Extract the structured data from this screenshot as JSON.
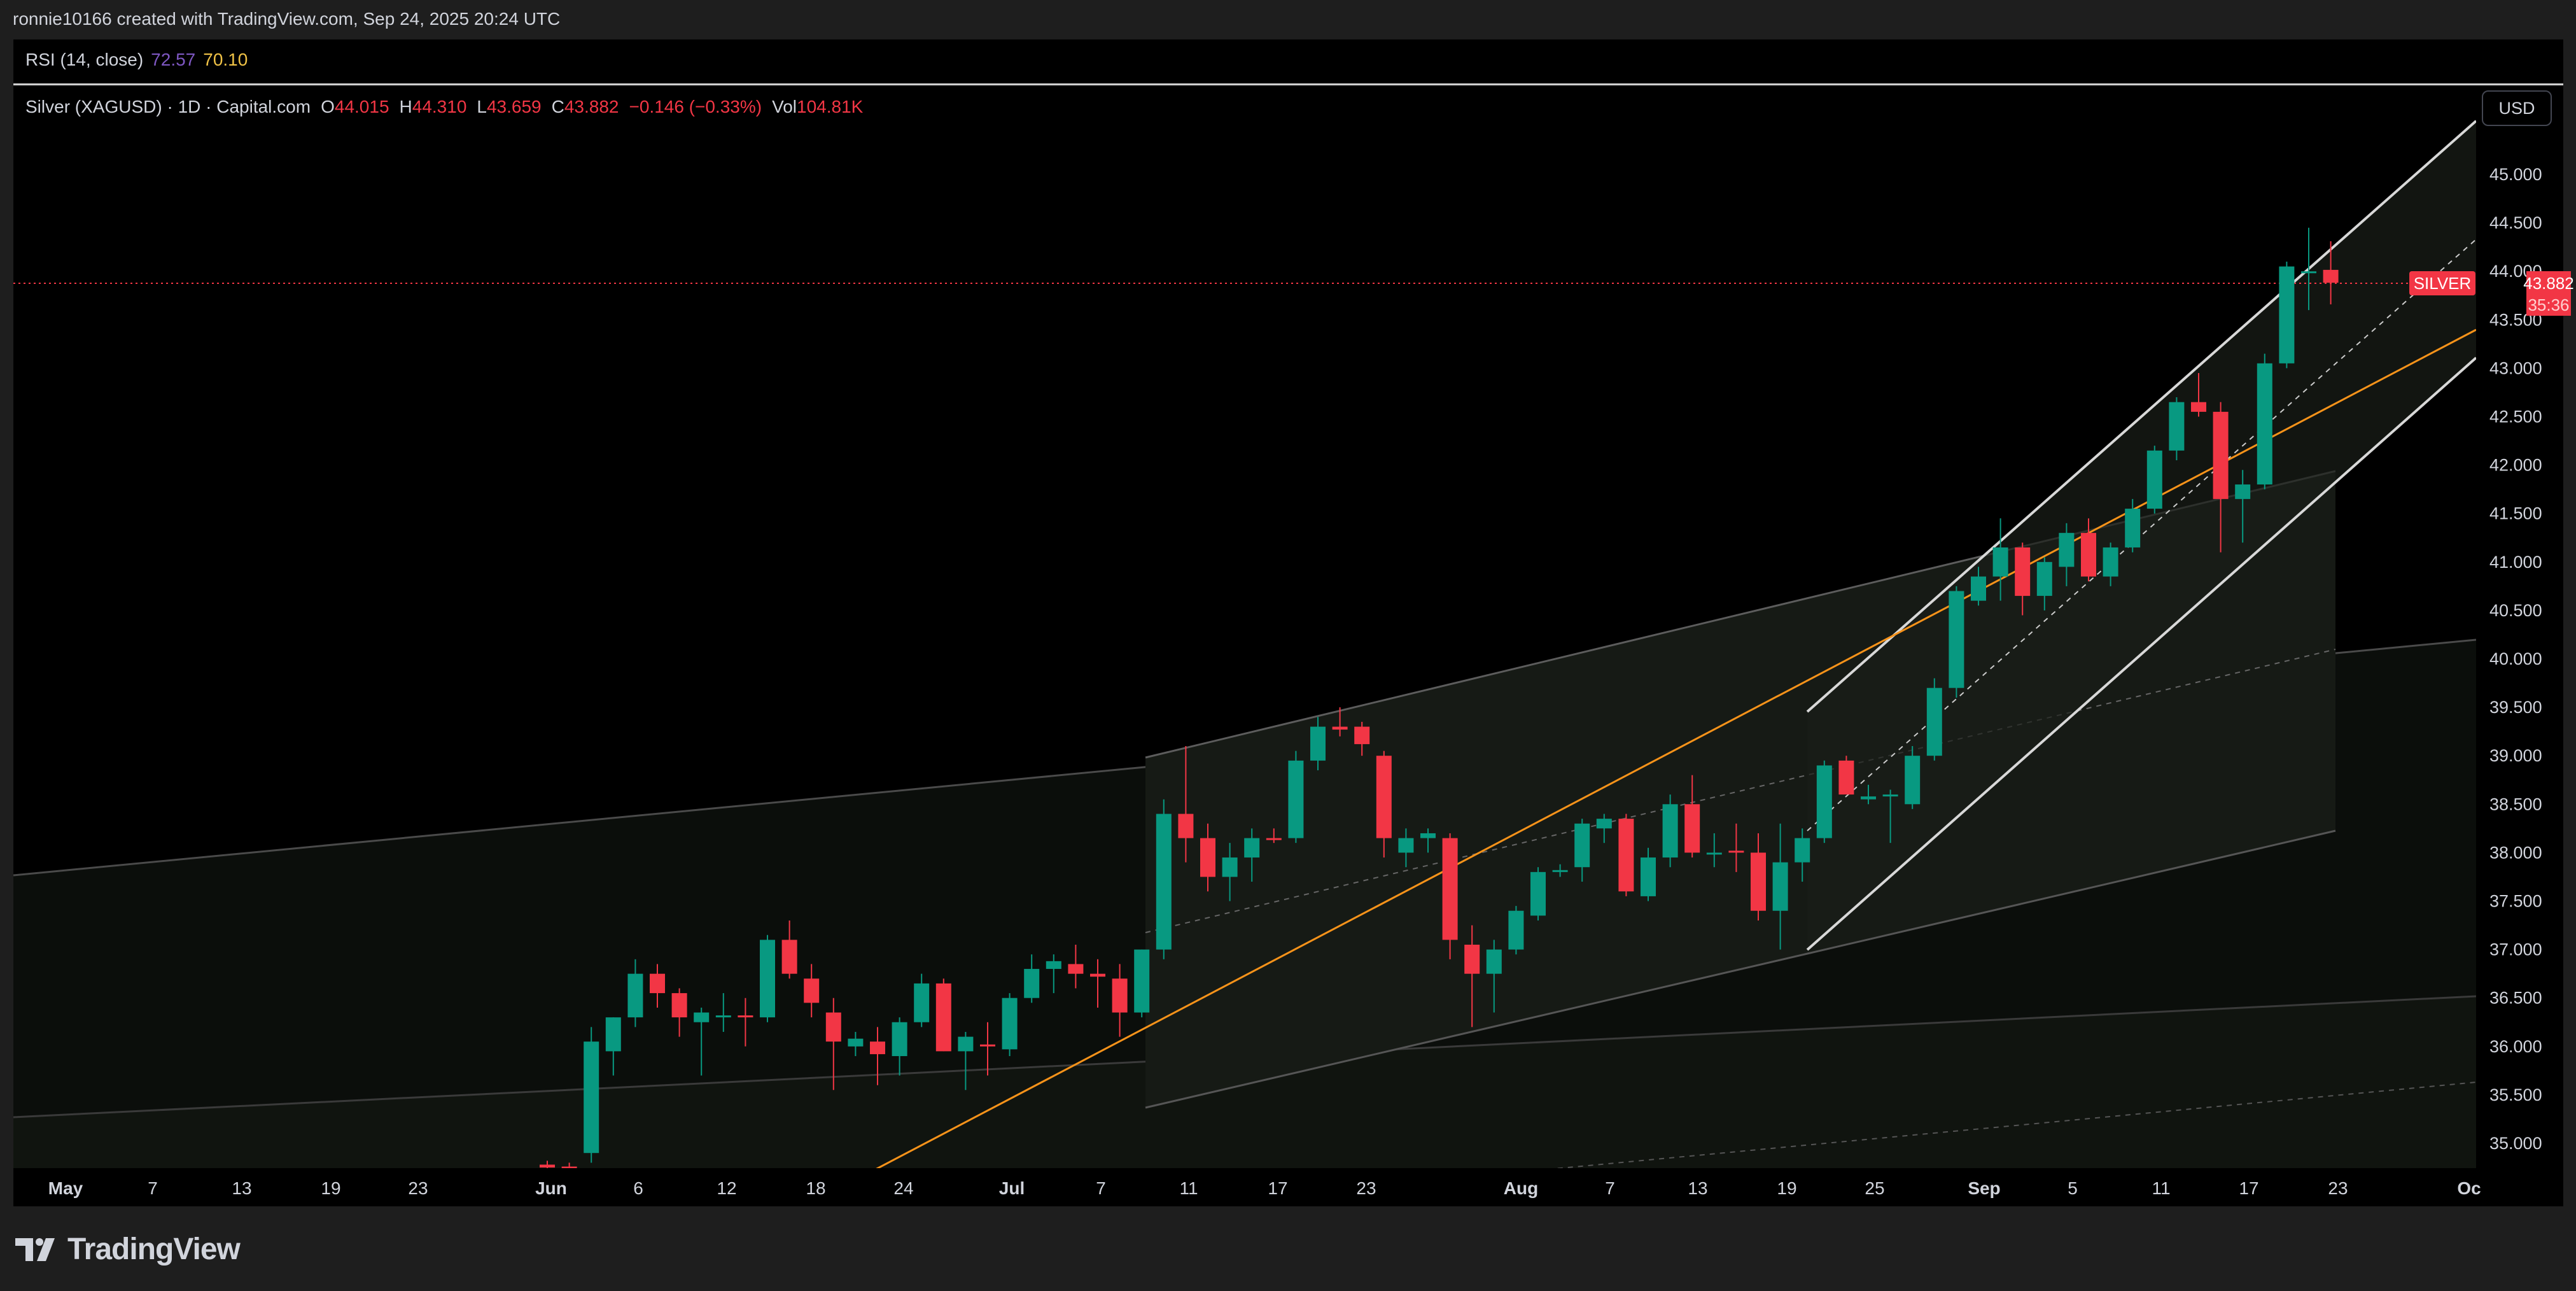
{
  "header": {
    "credit": "ronnie10166 created with TradingView.com, Sep 24, 2025 20:24 UTC"
  },
  "rsi": {
    "label": "RSI (14, close)",
    "value1": "72.57",
    "value2": "70.10"
  },
  "legend": {
    "symbol": "Silver (XAGUSD) · 1D · Capital.com",
    "o_label": "O",
    "o": "44.015",
    "h_label": "H",
    "h": "44.310",
    "l_label": "L",
    "l": "43.659",
    "c_label": "C",
    "c": "43.882",
    "change": "−0.146 (−0.33%)",
    "vol_label": "Vol",
    "vol": "104.81K"
  },
  "currency_button": "USD",
  "price_tag": {
    "symbol": "SILVER",
    "price": "43.882",
    "countdown": "35:36"
  },
  "brand": {
    "name": "TradingView"
  },
  "colors": {
    "up": "#089981",
    "down": "#f23645",
    "background": "#000000",
    "orange_line": "#f7931a"
  },
  "chart_data": {
    "type": "candlestick",
    "symbol": "Silver (XAGUSD)",
    "interval": "1D",
    "ylim": [
      34.7,
      45.5
    ],
    "y_ticks": [
      "35.000",
      "35.500",
      "36.000",
      "36.500",
      "37.000",
      "37.500",
      "38.000",
      "38.500",
      "39.000",
      "39.500",
      "40.000",
      "40.500",
      "41.000",
      "41.500",
      "42.000",
      "42.500",
      "43.000",
      "43.500",
      "44.000",
      "44.500",
      "45.000"
    ],
    "x_ticks": [
      "May",
      "7",
      "13",
      "19",
      "23",
      "Jun",
      "6",
      "12",
      "18",
      "24",
      "Jul",
      "7",
      "11",
      "17",
      "23",
      "Aug",
      "7",
      "13",
      "19",
      "25",
      "Sep",
      "5",
      "11",
      "17",
      "23",
      "Oc"
    ],
    "last_price": 43.882,
    "candles": [
      {
        "o": 34.78,
        "h": 34.82,
        "l": 34.7,
        "c": 34.75
      },
      {
        "o": 34.76,
        "h": 34.8,
        "l": 34.7,
        "c": 34.74
      },
      {
        "o": 34.9,
        "h": 36.2,
        "l": 34.8,
        "c": 36.05
      },
      {
        "o": 35.95,
        "h": 36.3,
        "l": 35.7,
        "c": 36.3
      },
      {
        "o": 36.3,
        "h": 36.9,
        "l": 36.2,
        "c": 36.75
      },
      {
        "o": 36.75,
        "h": 36.85,
        "l": 36.4,
        "c": 36.55
      },
      {
        "o": 36.55,
        "h": 36.6,
        "l": 36.1,
        "c": 36.3
      },
      {
        "o": 36.25,
        "h": 36.4,
        "l": 35.7,
        "c": 36.35
      },
      {
        "o": 36.3,
        "h": 36.55,
        "l": 36.15,
        "c": 36.32
      },
      {
        "o": 36.32,
        "h": 36.5,
        "l": 36.0,
        "c": 36.3
      },
      {
        "o": 36.3,
        "h": 37.15,
        "l": 36.25,
        "c": 37.1
      },
      {
        "o": 37.1,
        "h": 37.3,
        "l": 36.7,
        "c": 36.75
      },
      {
        "o": 36.7,
        "h": 36.85,
        "l": 36.3,
        "c": 36.45
      },
      {
        "o": 36.35,
        "h": 36.5,
        "l": 35.55,
        "c": 36.05
      },
      {
        "o": 36.0,
        "h": 36.15,
        "l": 35.9,
        "c": 36.08
      },
      {
        "o": 36.05,
        "h": 36.2,
        "l": 35.6,
        "c": 35.92
      },
      {
        "o": 35.9,
        "h": 36.3,
        "l": 35.7,
        "c": 36.25
      },
      {
        "o": 36.25,
        "h": 36.75,
        "l": 36.2,
        "c": 36.65
      },
      {
        "o": 36.65,
        "h": 36.7,
        "l": 35.95,
        "c": 35.95
      },
      {
        "o": 35.95,
        "h": 36.15,
        "l": 35.55,
        "c": 36.1
      },
      {
        "o": 36.02,
        "h": 36.25,
        "l": 35.7,
        "c": 36.0
      },
      {
        "o": 35.97,
        "h": 36.55,
        "l": 35.9,
        "c": 36.5
      },
      {
        "o": 36.5,
        "h": 36.95,
        "l": 36.45,
        "c": 36.8
      },
      {
        "o": 36.8,
        "h": 36.95,
        "l": 36.55,
        "c": 36.88
      },
      {
        "o": 36.85,
        "h": 37.05,
        "l": 36.6,
        "c": 36.75
      },
      {
        "o": 36.75,
        "h": 36.9,
        "l": 36.4,
        "c": 36.72
      },
      {
        "o": 36.7,
        "h": 36.85,
        "l": 36.1,
        "c": 36.35
      },
      {
        "o": 36.35,
        "h": 37.0,
        "l": 36.3,
        "c": 37.0
      },
      {
        "o": 37.0,
        "h": 38.55,
        "l": 36.9,
        "c": 38.4
      },
      {
        "o": 38.4,
        "h": 39.1,
        "l": 37.9,
        "c": 38.15
      },
      {
        "o": 38.15,
        "h": 38.3,
        "l": 37.6,
        "c": 37.75
      },
      {
        "o": 37.75,
        "h": 38.1,
        "l": 37.5,
        "c": 37.95
      },
      {
        "o": 37.95,
        "h": 38.25,
        "l": 37.7,
        "c": 38.15
      },
      {
        "o": 38.15,
        "h": 38.25,
        "l": 38.1,
        "c": 38.13
      },
      {
        "o": 38.15,
        "h": 39.05,
        "l": 38.1,
        "c": 38.95
      },
      {
        "o": 38.95,
        "h": 39.4,
        "l": 38.85,
        "c": 39.3
      },
      {
        "o": 39.3,
        "h": 39.5,
        "l": 39.2,
        "c": 39.27
      },
      {
        "o": 39.3,
        "h": 39.35,
        "l": 39.0,
        "c": 39.12
      },
      {
        "o": 39.0,
        "h": 39.05,
        "l": 37.95,
        "c": 38.15
      },
      {
        "o": 38.0,
        "h": 38.25,
        "l": 37.85,
        "c": 38.15
      },
      {
        "o": 38.15,
        "h": 38.25,
        "l": 38.0,
        "c": 38.2
      },
      {
        "o": 38.15,
        "h": 38.2,
        "l": 36.9,
        "c": 37.1
      },
      {
        "o": 37.05,
        "h": 37.25,
        "l": 36.2,
        "c": 36.75
      },
      {
        "o": 36.75,
        "h": 37.1,
        "l": 36.35,
        "c": 37.0
      },
      {
        "o": 37.0,
        "h": 37.45,
        "l": 36.95,
        "c": 37.4
      },
      {
        "o": 37.35,
        "h": 37.85,
        "l": 37.3,
        "c": 37.8
      },
      {
        "o": 37.8,
        "h": 37.88,
        "l": 37.75,
        "c": 37.82
      },
      {
        "o": 37.85,
        "h": 38.35,
        "l": 37.7,
        "c": 38.3
      },
      {
        "o": 38.25,
        "h": 38.4,
        "l": 38.1,
        "c": 38.35
      },
      {
        "o": 38.35,
        "h": 38.4,
        "l": 37.55,
        "c": 37.6
      },
      {
        "o": 37.55,
        "h": 38.05,
        "l": 37.5,
        "c": 37.95
      },
      {
        "o": 37.95,
        "h": 38.6,
        "l": 37.85,
        "c": 38.5
      },
      {
        "o": 38.5,
        "h": 38.8,
        "l": 37.95,
        "c": 38.0
      },
      {
        "o": 38.0,
        "h": 38.2,
        "l": 37.85,
        "c": 38.0
      },
      {
        "o": 38.02,
        "h": 38.3,
        "l": 37.8,
        "c": 38.0
      },
      {
        "o": 38.0,
        "h": 38.2,
        "l": 37.3,
        "c": 37.4
      },
      {
        "o": 37.4,
        "h": 38.3,
        "l": 37.0,
        "c": 37.9
      },
      {
        "o": 37.9,
        "h": 38.25,
        "l": 37.7,
        "c": 38.15
      },
      {
        "o": 38.15,
        "h": 38.95,
        "l": 38.1,
        "c": 38.9
      },
      {
        "o": 38.95,
        "h": 39.0,
        "l": 38.7,
        "c": 38.6
      },
      {
        "o": 38.55,
        "h": 38.7,
        "l": 38.5,
        "c": 38.58
      },
      {
        "o": 38.58,
        "h": 38.65,
        "l": 38.1,
        "c": 38.6
      },
      {
        "o": 38.5,
        "h": 39.1,
        "l": 38.45,
        "c": 39.0
      },
      {
        "o": 39.0,
        "h": 39.8,
        "l": 38.95,
        "c": 39.7
      },
      {
        "o": 39.7,
        "h": 40.75,
        "l": 39.6,
        "c": 40.7
      },
      {
        "o": 40.6,
        "h": 40.95,
        "l": 40.55,
        "c": 40.85
      },
      {
        "o": 40.85,
        "h": 41.45,
        "l": 40.6,
        "c": 41.15
      },
      {
        "o": 41.15,
        "h": 41.2,
        "l": 40.45,
        "c": 40.65
      },
      {
        "o": 40.65,
        "h": 41.05,
        "l": 40.5,
        "c": 41.0
      },
      {
        "o": 40.95,
        "h": 41.4,
        "l": 40.75,
        "c": 41.3
      },
      {
        "o": 41.3,
        "h": 41.45,
        "l": 40.8,
        "c": 40.85
      },
      {
        "o": 40.85,
        "h": 41.2,
        "l": 40.75,
        "c": 41.15
      },
      {
        "o": 41.15,
        "h": 41.65,
        "l": 41.1,
        "c": 41.55
      },
      {
        "o": 41.55,
        "h": 42.2,
        "l": 41.5,
        "c": 42.15
      },
      {
        "o": 42.15,
        "h": 42.7,
        "l": 42.05,
        "c": 42.65
      },
      {
        "o": 42.65,
        "h": 42.95,
        "l": 42.5,
        "c": 42.55
      },
      {
        "o": 42.55,
        "h": 42.65,
        "l": 41.1,
        "c": 41.65
      },
      {
        "o": 41.65,
        "h": 41.95,
        "l": 41.2,
        "c": 41.8
      },
      {
        "o": 41.8,
        "h": 43.15,
        "l": 41.75,
        "c": 43.05
      },
      {
        "o": 43.05,
        "h": 44.1,
        "l": 43.0,
        "c": 44.05
      },
      {
        "o": 44.0,
        "h": 44.45,
        "l": 43.6,
        "c": 44.0
      },
      {
        "o": 44.015,
        "h": 44.31,
        "l": 43.659,
        "c": 43.882
      }
    ]
  }
}
